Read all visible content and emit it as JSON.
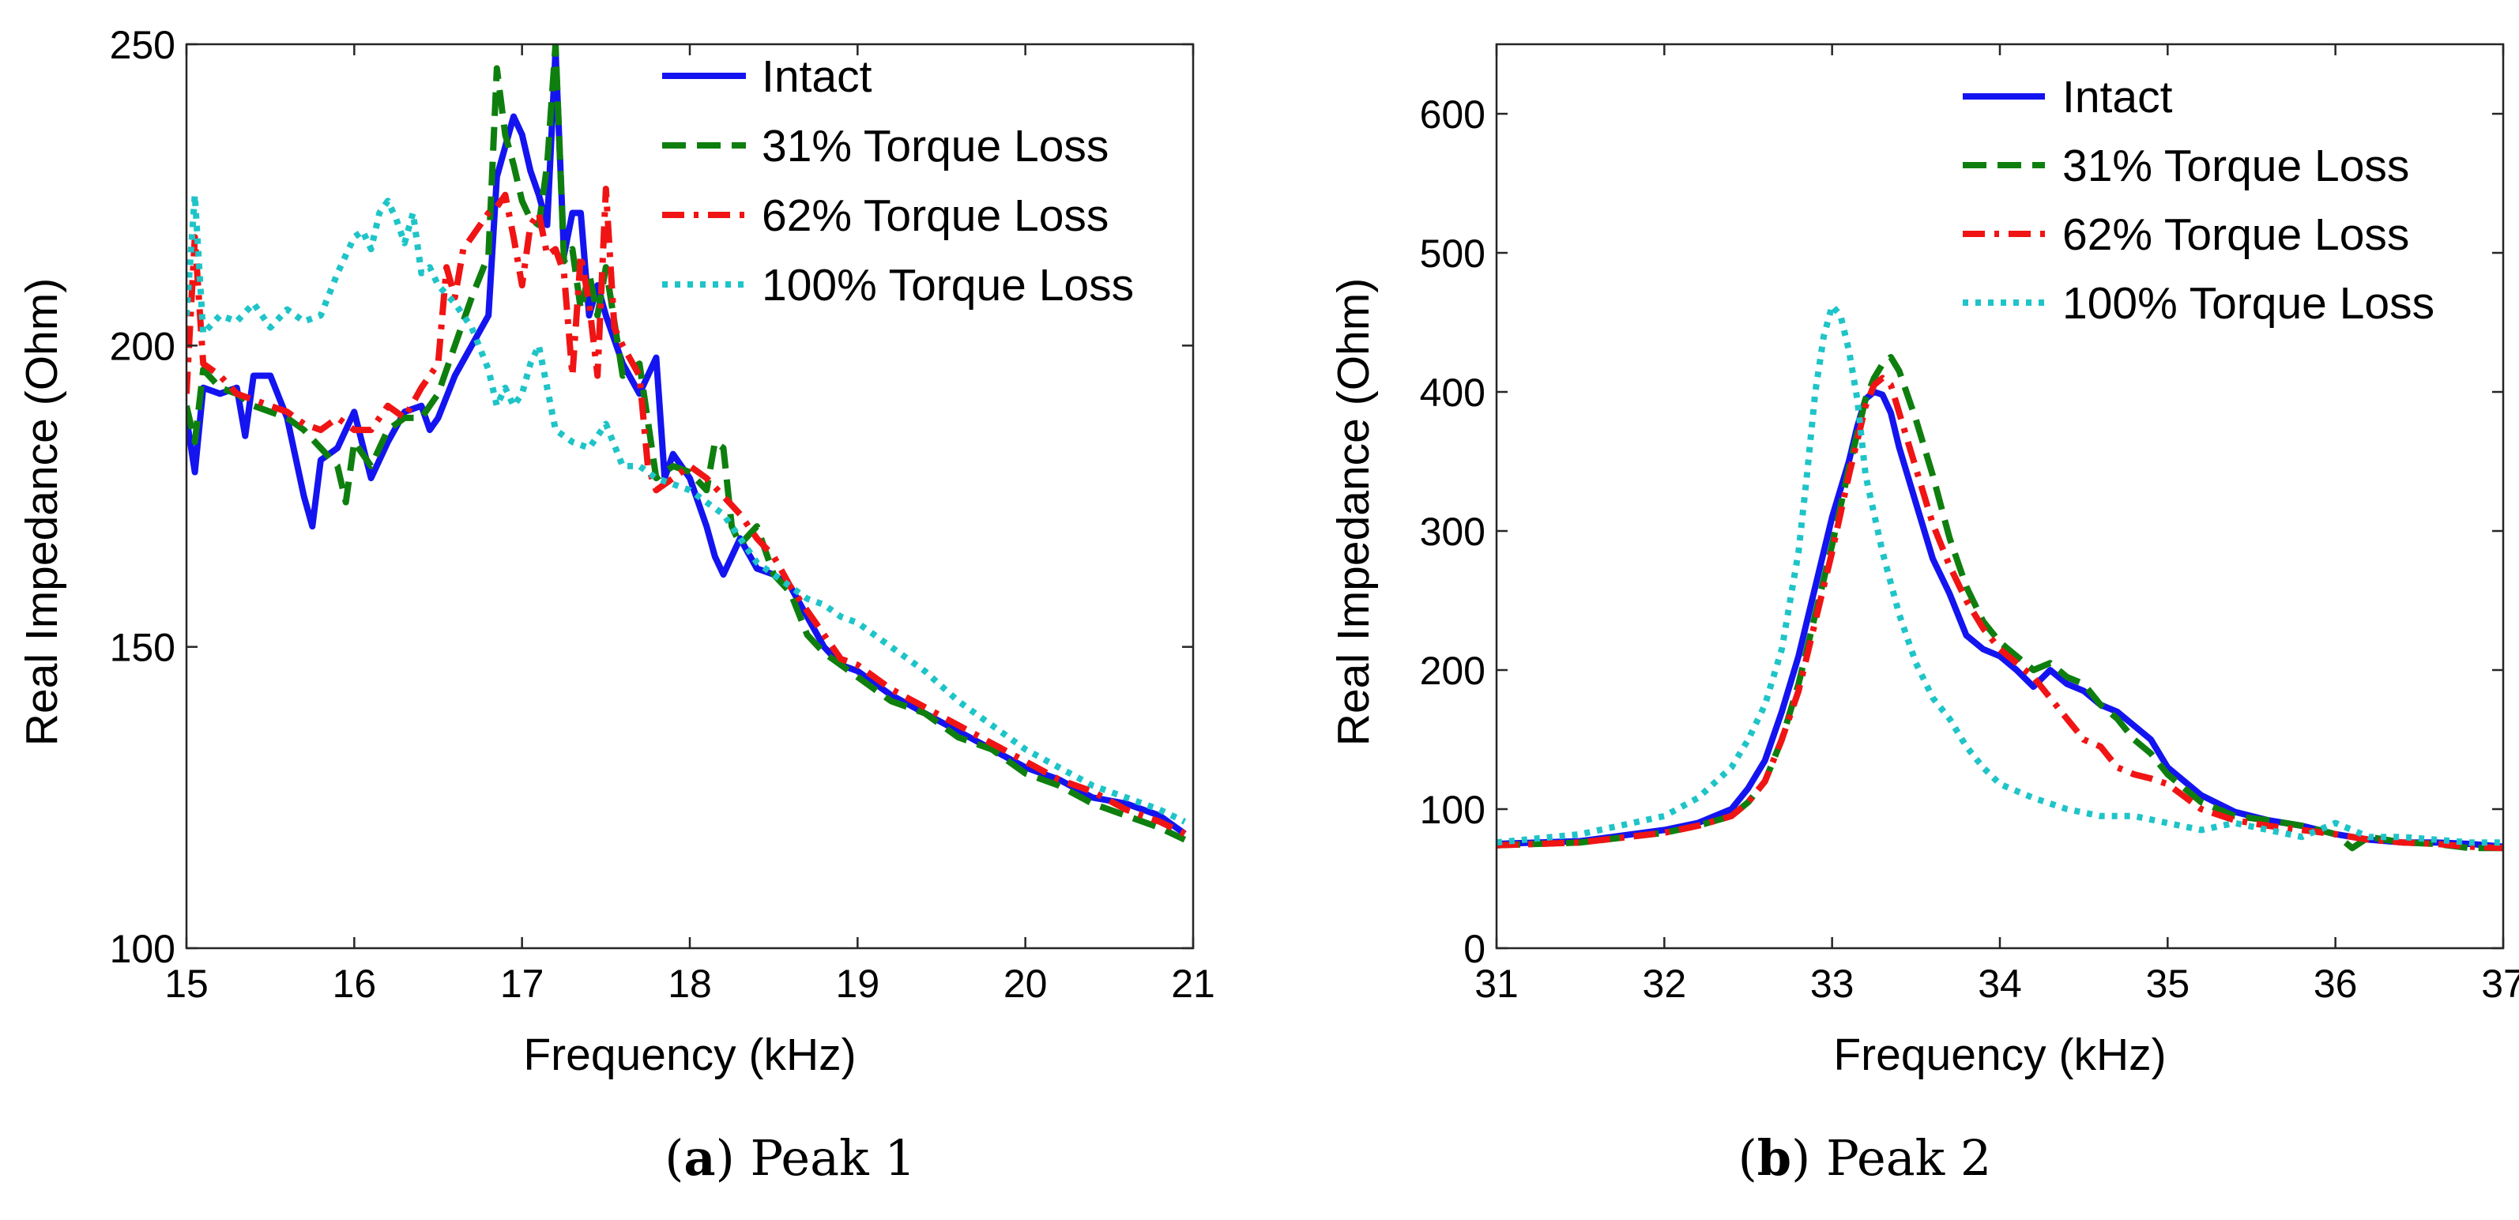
{
  "colors": {
    "intact": "#1414f0",
    "loss31": "#0e7f0e",
    "loss62": "#f01414",
    "loss100": "#1ec4c8"
  },
  "legend": {
    "placement": "top-right",
    "entries": [
      "Intact",
      "31% Torque Loss",
      "62% Torque Loss",
      "100% Torque Loss"
    ]
  },
  "captions": {
    "a_letter": "a",
    "a_text": " Peak 1",
    "b_letter": "b",
    "b_text": " Peak 2"
  },
  "chart_data": [
    {
      "type": "line",
      "title": "",
      "caption": "(a) Peak 1",
      "xlabel": "Frequency (kHz)",
      "ylabel": "Real Impedance (Ohm)",
      "xlim": [
        15,
        21
      ],
      "ylim": [
        100,
        250
      ],
      "xticks": [
        15,
        16,
        17,
        18,
        19,
        20,
        21
      ],
      "yticks": [
        100,
        150,
        200,
        250
      ],
      "grid": false,
      "series": [
        {
          "name": "Intact",
          "style": "solid",
          "x": [
            15,
            15.05,
            15.1,
            15.2,
            15.3,
            15.35,
            15.4,
            15.5,
            15.6,
            15.7,
            15.75,
            15.8,
            15.9,
            16,
            16.1,
            16.2,
            16.3,
            16.4,
            16.45,
            16.5,
            16.6,
            16.7,
            16.8,
            16.85,
            16.9,
            16.95,
            17,
            17.05,
            17.1,
            17.15,
            17.2,
            17.25,
            17.3,
            17.35,
            17.4,
            17.45,
            17.5,
            17.6,
            17.7,
            17.8,
            17.85,
            17.9,
            18,
            18.1,
            18.15,
            18.2,
            18.3,
            18.4,
            18.5,
            18.6,
            18.7,
            18.8,
            18.9,
            19,
            19.2,
            19.4,
            19.6,
            19.8,
            20,
            20.2,
            20.4,
            20.6,
            20.8,
            20.95
          ],
          "y": [
            188,
            179,
            193,
            192,
            193,
            185,
            195,
            195,
            188,
            175,
            170,
            181,
            183,
            189,
            178,
            184,
            189,
            190,
            186,
            188,
            195,
            200,
            205,
            228,
            233,
            238,
            235,
            229,
            225,
            220,
            249,
            215,
            222,
            222,
            205,
            210,
            205,
            197,
            192,
            198,
            178,
            182,
            178,
            170,
            165,
            162,
            168,
            163,
            162,
            160,
            155,
            150,
            147,
            146,
            142,
            139,
            136,
            133,
            130,
            128,
            125,
            124,
            122,
            119
          ]
        },
        {
          "name": "31% Torque Loss",
          "style": "dashed",
          "x": [
            15,
            15.05,
            15.1,
            15.2,
            15.3,
            15.4,
            15.5,
            15.6,
            15.7,
            15.8,
            15.9,
            15.95,
            16,
            16.1,
            16.2,
            16.3,
            16.4,
            16.5,
            16.6,
            16.7,
            16.8,
            16.85,
            16.9,
            16.95,
            17,
            17.05,
            17.1,
            17.15,
            17.2,
            17.25,
            17.3,
            17.35,
            17.4,
            17.45,
            17.5,
            17.6,
            17.7,
            17.8,
            17.9,
            18,
            18.1,
            18.15,
            18.2,
            18.25,
            18.3,
            18.4,
            18.5,
            18.6,
            18.7,
            18.8,
            18.9,
            19,
            19.2,
            19.4,
            19.6,
            19.8,
            20,
            20.2,
            20.4,
            20.6,
            20.8,
            20.95
          ],
          "y": [
            190,
            184,
            196,
            193,
            192,
            190,
            189,
            188,
            186,
            183,
            180,
            174,
            184,
            180,
            186,
            188,
            188,
            192,
            200,
            208,
            215,
            246,
            235,
            230,
            224,
            221,
            220,
            230,
            250,
            214,
            216,
            206,
            212,
            205,
            213,
            195,
            197,
            178,
            180,
            179,
            176,
            184,
            183,
            170,
            167,
            170,
            162,
            159,
            152,
            149,
            147,
            145,
            141,
            139,
            135,
            133,
            129,
            127,
            124,
            122,
            120,
            118
          ]
        },
        {
          "name": "62% Torque Loss",
          "style": "dashdot",
          "x": [
            15,
            15.05,
            15.1,
            15.2,
            15.3,
            15.4,
            15.5,
            15.6,
            15.7,
            15.8,
            15.9,
            16,
            16.1,
            16.2,
            16.3,
            16.4,
            16.5,
            16.55,
            16.6,
            16.65,
            16.7,
            16.8,
            16.85,
            16.9,
            16.95,
            17,
            17.05,
            17.1,
            17.15,
            17.2,
            17.25,
            17.3,
            17.35,
            17.4,
            17.45,
            17.5,
            17.55,
            17.6,
            17.7,
            17.75,
            17.8,
            17.9,
            18,
            18.1,
            18.2,
            18.3,
            18.4,
            18.5,
            18.6,
            18.7,
            18.8,
            18.9,
            19,
            19.2,
            19.4,
            19.6,
            19.8,
            20,
            20.2,
            20.4,
            20.6,
            20.8,
            20.95
          ],
          "y": [
            192,
            218,
            197,
            195,
            192,
            191,
            190,
            189,
            187,
            186,
            188,
            186,
            186,
            190,
            188,
            193,
            197,
            213,
            208,
            216,
            218,
            222,
            223,
            225,
            218,
            210,
            220,
            222,
            215,
            216,
            212,
            195,
            215,
            207,
            195,
            226,
            203,
            200,
            195,
            180,
            176,
            178,
            180,
            178,
            175,
            172,
            168,
            165,
            160,
            156,
            152,
            148,
            147,
            143,
            140,
            137,
            134,
            131,
            128,
            126,
            123,
            121,
            119
          ]
        },
        {
          "name": "100% Torque Loss",
          "style": "dotted",
          "x": [
            15,
            15.05,
            15.1,
            15.2,
            15.3,
            15.4,
            15.5,
            15.6,
            15.7,
            15.8,
            15.9,
            16,
            16.05,
            16.1,
            16.15,
            16.2,
            16.25,
            16.3,
            16.35,
            16.4,
            16.45,
            16.5,
            16.6,
            16.7,
            16.8,
            16.85,
            16.9,
            16.95,
            17,
            17.05,
            17.1,
            17.2,
            17.3,
            17.4,
            17.5,
            17.6,
            17.7,
            17.8,
            17.9,
            18,
            18.1,
            18.2,
            18.3,
            18.4,
            18.5,
            18.6,
            18.7,
            18.8,
            18.9,
            19,
            19.2,
            19.4,
            19.6,
            19.8,
            20,
            20.2,
            20.4,
            20.6,
            20.8,
            20.95
          ],
          "y": [
            205,
            225,
            202,
            205,
            204,
            207,
            203,
            206,
            204,
            205,
            212,
            218,
            219,
            216,
            222,
            224,
            221,
            217,
            222,
            212,
            213,
            210,
            207,
            203,
            196,
            190,
            193,
            190,
            192,
            197,
            200,
            186,
            184,
            183,
            187,
            180,
            180,
            178,
            177,
            176,
            174,
            172,
            168,
            164,
            162,
            160,
            158,
            157,
            155,
            154,
            150,
            146,
            141,
            137,
            133,
            130,
            127,
            125,
            123,
            121
          ]
        }
      ]
    },
    {
      "type": "line",
      "title": "",
      "caption": "(b) Peak 2",
      "xlabel": "Frequency (kHz)",
      "ylabel": "Real Impedance (Ohm)",
      "xlim": [
        31,
        37
      ],
      "ylim": [
        0,
        650
      ],
      "xticks": [
        31,
        32,
        33,
        34,
        35,
        36,
        37
      ],
      "yticks": [
        0,
        100,
        200,
        300,
        400,
        500,
        600
      ],
      "grid": false,
      "series": [
        {
          "name": "Intact",
          "style": "solid",
          "x": [
            31,
            31.5,
            32,
            32.2,
            32.4,
            32.5,
            32.6,
            32.7,
            32.8,
            32.9,
            33,
            33.1,
            33.15,
            33.2,
            33.25,
            33.3,
            33.35,
            33.4,
            33.5,
            33.6,
            33.7,
            33.8,
            33.9,
            34,
            34.1,
            34.2,
            34.3,
            34.4,
            34.5,
            34.6,
            34.7,
            34.8,
            34.9,
            35,
            35.2,
            35.4,
            35.6,
            35.8,
            36,
            36.2,
            36.4,
            36.6,
            36.8,
            37
          ],
          "y": [
            75,
            77,
            85,
            90,
            100,
            115,
            135,
            170,
            210,
            260,
            310,
            350,
            375,
            395,
            400,
            398,
            385,
            360,
            320,
            280,
            255,
            225,
            215,
            210,
            200,
            188,
            200,
            190,
            185,
            175,
            170,
            160,
            150,
            130,
            110,
            98,
            92,
            88,
            82,
            78,
            76,
            76,
            75,
            73
          ]
        },
        {
          "name": "31% Torque Loss",
          "style": "dashed",
          "x": [
            31,
            31.5,
            32,
            32.2,
            32.4,
            32.5,
            32.6,
            32.7,
            32.8,
            32.9,
            33,
            33.1,
            33.2,
            33.25,
            33.3,
            33.35,
            33.4,
            33.5,
            33.6,
            33.7,
            33.8,
            33.9,
            34,
            34.1,
            34.2,
            34.3,
            34.4,
            34.5,
            34.6,
            34.7,
            34.8,
            34.9,
            35,
            35.2,
            35.4,
            35.6,
            35.8,
            36,
            36.1,
            36.2,
            36.4,
            36.6,
            36.8,
            37
          ],
          "y": [
            74,
            76,
            83,
            88,
            95,
            105,
            120,
            150,
            190,
            240,
            290,
            345,
            395,
            410,
            420,
            425,
            415,
            380,
            340,
            295,
            260,
            235,
            220,
            210,
            200,
            205,
            195,
            190,
            175,
            165,
            150,
            140,
            125,
            105,
            95,
            92,
            88,
            82,
            72,
            80,
            76,
            75,
            72,
            72
          ]
        },
        {
          "name": "62% Torque Loss",
          "style": "dashdot",
          "x": [
            31,
            31.5,
            32,
            32.2,
            32.4,
            32.5,
            32.6,
            32.7,
            32.8,
            32.9,
            33,
            33.1,
            33.2,
            33.25,
            33.3,
            33.35,
            33.4,
            33.5,
            33.6,
            33.7,
            33.8,
            33.9,
            34,
            34.1,
            34.2,
            34.3,
            34.4,
            34.5,
            34.6,
            34.7,
            34.8,
            34.9,
            35,
            35.2,
            35.4,
            35.6,
            35.8,
            36,
            36.2,
            36.4,
            36.6,
            36.8,
            37
          ],
          "y": [
            74,
            76,
            83,
            88,
            95,
            105,
            120,
            150,
            185,
            235,
            285,
            340,
            390,
            405,
            410,
            405,
            385,
            345,
            305,
            275,
            250,
            230,
            215,
            205,
            195,
            180,
            165,
            150,
            145,
            130,
            125,
            122,
            118,
            100,
            92,
            88,
            85,
            82,
            78,
            76,
            75,
            73,
            72
          ]
        },
        {
          "name": "100% Torque Loss",
          "style": "dotted",
          "x": [
            31,
            31.5,
            32,
            32.2,
            32.4,
            32.5,
            32.6,
            32.7,
            32.8,
            32.85,
            32.9,
            32.95,
            33,
            33.05,
            33.1,
            33.15,
            33.2,
            33.3,
            33.4,
            33.5,
            33.6,
            33.7,
            33.8,
            33.9,
            34,
            34.2,
            34.4,
            34.6,
            34.8,
            35,
            35.2,
            35.4,
            35.6,
            35.8,
            36,
            36.2,
            36.4,
            36.6,
            36.8,
            37
          ],
          "y": [
            76,
            82,
            95,
            108,
            130,
            150,
            175,
            215,
            285,
            340,
            400,
            440,
            462,
            455,
            430,
            395,
            340,
            285,
            240,
            205,
            180,
            165,
            145,
            130,
            118,
            108,
            100,
            95,
            95,
            90,
            85,
            90,
            85,
            80,
            90,
            80,
            80,
            78,
            76,
            76
          ]
        }
      ]
    }
  ]
}
